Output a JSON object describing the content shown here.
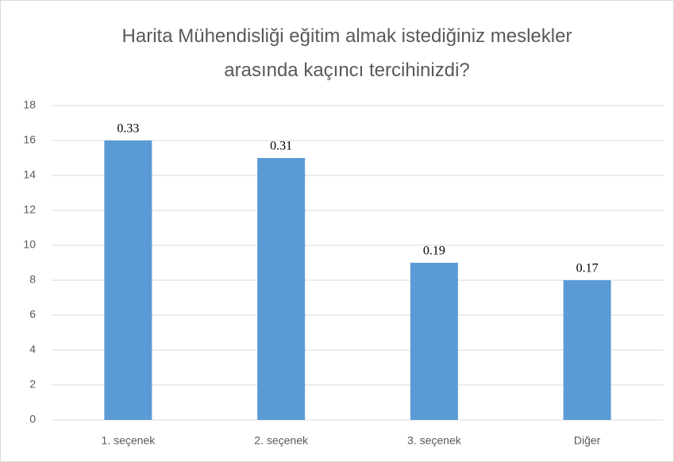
{
  "chart_data": {
    "type": "bar",
    "title": "Harita Mühendisliği eğitim almak istediğiniz meslekler arasında kaçıncı tercihinizdi?",
    "categories": [
      "1. seçenek",
      "2. seçenek",
      "3. seçenek",
      "Diğer"
    ],
    "values": [
      16,
      15,
      9,
      8
    ],
    "annotations": [
      "0.33",
      "0.31",
      "0.19",
      "0.17"
    ],
    "color": "#5b9bd5",
    "ylim": [
      0,
      18
    ],
    "yticks": [
      0,
      2,
      4,
      6,
      8,
      10,
      12,
      14,
      16,
      18
    ],
    "grid": true
  }
}
